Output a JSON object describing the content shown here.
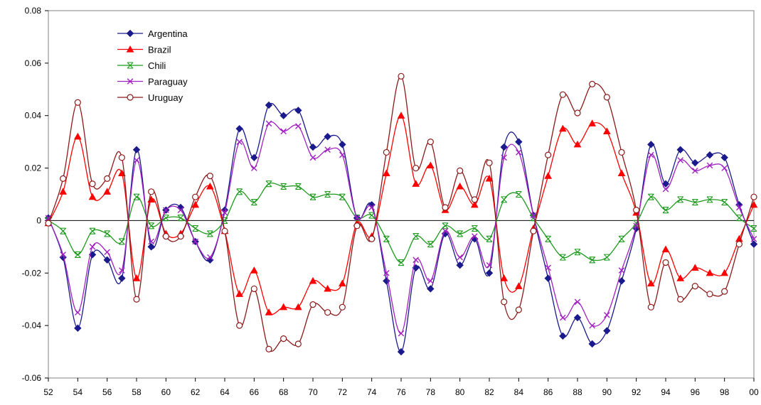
{
  "chart_data": {
    "type": "line",
    "title": "",
    "xlabel": "",
    "ylabel": "",
    "xlim": [
      52,
      100
    ],
    "ylim": [
      -0.06,
      0.08
    ],
    "grid": false,
    "legend_position": "top-left",
    "x_tick_labels": [
      "52",
      "54",
      "56",
      "58",
      "60",
      "62",
      "64",
      "66",
      "68",
      "70",
      "72",
      "74",
      "76",
      "78",
      "80",
      "82",
      "84",
      "86",
      "88",
      "90",
      "92",
      "94",
      "96",
      "98",
      "00"
    ],
    "y_tick_labels": [
      "-0.06",
      "-0.04",
      "-0.02",
      "0",
      "0.02",
      "0.04",
      "0.06",
      "0.08"
    ],
    "x": [
      52,
      53,
      54,
      55,
      56,
      57,
      58,
      59,
      60,
      61,
      62,
      63,
      64,
      65,
      66,
      67,
      68,
      69,
      70,
      71,
      72,
      73,
      74,
      75,
      76,
      77,
      78,
      79,
      80,
      81,
      82,
      83,
      84,
      85,
      86,
      87,
      88,
      89,
      90,
      91,
      92,
      93,
      94,
      95,
      96,
      97,
      98,
      99,
      100
    ],
    "series": [
      {
        "name": "Argentina",
        "color": "#1a1a8c",
        "marker": "diamond",
        "values": [
          0.001,
          -0.014,
          -0.041,
          -0.013,
          -0.015,
          -0.022,
          0.027,
          -0.01,
          0.004,
          0.005,
          -0.008,
          -0.015,
          0.004,
          0.035,
          0.024,
          0.044,
          0.04,
          0.042,
          0.028,
          0.032,
          0.029,
          0.001,
          0.006,
          -0.023,
          -0.05,
          -0.018,
          -0.026,
          -0.005,
          -0.017,
          -0.007,
          -0.02,
          0.028,
          0.03,
          0.002,
          -0.022,
          -0.044,
          -0.037,
          -0.047,
          -0.042,
          -0.023,
          -0.003,
          0.029,
          0.014,
          0.027,
          0.022,
          0.025,
          0.024,
          0.006,
          -0.009
        ]
      },
      {
        "name": "Brazil",
        "color": "#ff0000",
        "marker": "triangle",
        "values": [
          -0.001,
          0.011,
          0.032,
          0.009,
          0.011,
          0.018,
          -0.022,
          0.008,
          -0.005,
          -0.005,
          0.006,
          0.013,
          -0.004,
          -0.028,
          -0.019,
          -0.035,
          -0.033,
          -0.033,
          -0.023,
          -0.026,
          -0.024,
          -0.001,
          -0.006,
          0.018,
          0.04,
          0.014,
          0.021,
          0.004,
          0.013,
          0.006,
          0.016,
          -0.022,
          -0.025,
          -0.003,
          0.017,
          0.035,
          0.029,
          0.037,
          0.034,
          0.018,
          0.003,
          -0.024,
          -0.011,
          -0.022,
          -0.018,
          -0.02,
          -0.02,
          -0.007,
          0.006
        ]
      },
      {
        "name": "Chili",
        "color": "#1f9a1f",
        "marker": "star",
        "values": [
          0.0,
          -0.004,
          -0.013,
          -0.004,
          -0.005,
          -0.008,
          0.009,
          -0.002,
          0.001,
          0.001,
          -0.003,
          -0.005,
          0.0,
          0.011,
          0.007,
          0.014,
          0.013,
          0.013,
          0.009,
          0.01,
          0.009,
          0.001,
          0.002,
          -0.007,
          -0.016,
          -0.006,
          -0.009,
          -0.002,
          -0.005,
          -0.003,
          -0.007,
          0.008,
          0.01,
          0.001,
          -0.007,
          -0.014,
          -0.012,
          -0.015,
          -0.014,
          -0.007,
          -0.001,
          0.009,
          0.004,
          0.008,
          0.007,
          0.008,
          0.007,
          0.001,
          -0.003
        ]
      },
      {
        "name": "Paraguay",
        "color": "#a020c0",
        "marker": "x",
        "values": [
          0.001,
          -0.013,
          -0.035,
          -0.01,
          -0.012,
          -0.019,
          0.023,
          -0.008,
          0.004,
          0.004,
          -0.008,
          -0.014,
          0.003,
          0.03,
          0.02,
          0.037,
          0.034,
          0.036,
          0.024,
          0.027,
          0.025,
          0.001,
          0.005,
          -0.02,
          -0.043,
          -0.015,
          -0.023,
          -0.004,
          -0.014,
          -0.006,
          -0.017,
          0.024,
          0.026,
          0.002,
          -0.018,
          -0.037,
          -0.031,
          -0.04,
          -0.036,
          -0.019,
          -0.002,
          0.025,
          0.012,
          0.023,
          0.019,
          0.021,
          0.02,
          0.005,
          -0.007
        ]
      },
      {
        "name": "Uruguay",
        "color": "#8b1a1a",
        "marker": "circle",
        "values": [
          -0.001,
          0.016,
          0.045,
          0.014,
          0.016,
          0.024,
          -0.03,
          0.011,
          -0.006,
          -0.006,
          0.009,
          0.017,
          -0.004,
          -0.04,
          -0.026,
          -0.049,
          -0.045,
          -0.047,
          -0.032,
          -0.035,
          -0.033,
          -0.002,
          -0.007,
          0.026,
          0.055,
          0.02,
          0.03,
          0.005,
          0.019,
          0.008,
          0.022,
          -0.031,
          -0.034,
          -0.004,
          0.025,
          0.048,
          0.041,
          0.052,
          0.047,
          0.026,
          0.004,
          -0.033,
          -0.016,
          -0.03,
          -0.025,
          -0.028,
          -0.027,
          -0.009,
          0.009
        ]
      }
    ]
  }
}
